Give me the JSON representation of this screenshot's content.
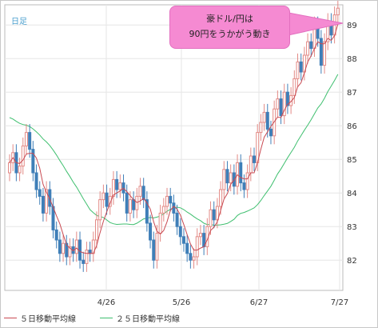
{
  "period_label": "日足",
  "callout": {
    "line1": "豪ドル/円は",
    "line2": "90円をうかがう動き"
  },
  "legend": {
    "ma5": "５日移動平均線",
    "ma25": "２５日移動平均線"
  },
  "colors": {
    "up": "#e38a86",
    "down": "#3f7fb8",
    "ma5": "#c94a52",
    "ma25": "#3fbf6f",
    "grid": "#e6e6e6",
    "callout": "#f58ad2"
  },
  "chart_data": {
    "type": "candlestick",
    "ylim": [
      81.1,
      89.6
    ],
    "y_ticks": [
      "82",
      "83",
      "84",
      "85",
      "86",
      "87",
      "88",
      "89"
    ],
    "x_ticks": [
      "4/26",
      "5/26",
      "6/27",
      "7/27"
    ],
    "close": [
      84.9,
      85.2,
      84.6,
      84.8,
      85.4,
      85.8,
      85.3,
      84.6,
      84.1,
      83.9,
      83.4,
      84.1,
      83.6,
      82.9,
      82.6,
      82.2,
      82.5,
      82.1,
      82.4,
      82.2,
      82.6,
      82.0,
      81.9,
      82.3,
      82.2,
      82.6,
      83.2,
      83.8,
      84.0,
      83.6,
      83.9,
      84.4,
      84.1,
      84.3,
      84.0,
      83.4,
      83.8,
      83.5,
      83.9,
      84.2,
      83.8,
      83.1,
      82.6,
      82.0,
      82.8,
      83.4,
      83.6,
      83.9,
      83.7,
      83.4,
      83.0,
      82.7,
      82.5,
      82.2,
      82.0,
      82.1,
      82.7,
      82.8,
      82.4,
      83.0,
      83.5,
      83.2,
      83.6,
      84.1,
      84.7,
      84.3,
      84.6,
      84.2,
      84.9,
      84.3,
      84.1,
      84.6,
      85.1,
      84.9,
      85.8,
      86.1,
      86.4,
      85.9,
      85.7,
      86.5,
      86.8,
      86.3,
      87.0,
      86.6,
      86.9,
      87.4,
      87.9,
      87.6,
      88.1,
      88.5,
      88.3,
      89.0,
      88.6,
      87.8,
      88.5,
      89.1,
      88.7,
      89.3,
      89.5
    ]
  }
}
